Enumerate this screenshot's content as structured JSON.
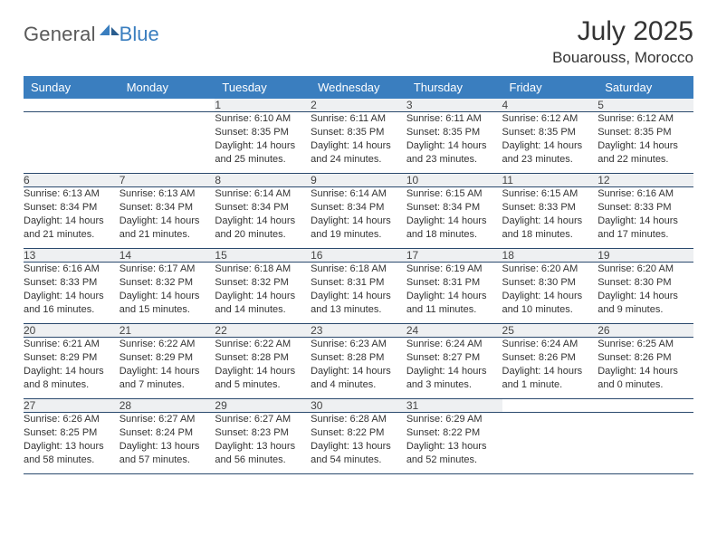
{
  "brand": {
    "general": "General",
    "blue": "Blue"
  },
  "title": {
    "month": "July 2025",
    "location": "Bouarouss, Morocco"
  },
  "colors": {
    "header_bg": "#3a7ebf",
    "header_text": "#ffffff",
    "daynum_bg": "#eef0f2",
    "border": "#2b4a6e",
    "text": "#333333",
    "logo_gray": "#5a5a5a",
    "logo_blue": "#3a7ebf"
  },
  "weekdays": [
    "Sunday",
    "Monday",
    "Tuesday",
    "Wednesday",
    "Thursday",
    "Friday",
    "Saturday"
  ],
  "weeks": [
    {
      "nums": [
        "",
        "",
        "1",
        "2",
        "3",
        "4",
        "5"
      ],
      "cells": [
        null,
        null,
        {
          "sunrise": "Sunrise: 6:10 AM",
          "sunset": "Sunset: 8:35 PM",
          "daylight": "Daylight: 14 hours and 25 minutes."
        },
        {
          "sunrise": "Sunrise: 6:11 AM",
          "sunset": "Sunset: 8:35 PM",
          "daylight": "Daylight: 14 hours and 24 minutes."
        },
        {
          "sunrise": "Sunrise: 6:11 AM",
          "sunset": "Sunset: 8:35 PM",
          "daylight": "Daylight: 14 hours and 23 minutes."
        },
        {
          "sunrise": "Sunrise: 6:12 AM",
          "sunset": "Sunset: 8:35 PM",
          "daylight": "Daylight: 14 hours and 23 minutes."
        },
        {
          "sunrise": "Sunrise: 6:12 AM",
          "sunset": "Sunset: 8:35 PM",
          "daylight": "Daylight: 14 hours and 22 minutes."
        }
      ]
    },
    {
      "nums": [
        "6",
        "7",
        "8",
        "9",
        "10",
        "11",
        "12"
      ],
      "cells": [
        {
          "sunrise": "Sunrise: 6:13 AM",
          "sunset": "Sunset: 8:34 PM",
          "daylight": "Daylight: 14 hours and 21 minutes."
        },
        {
          "sunrise": "Sunrise: 6:13 AM",
          "sunset": "Sunset: 8:34 PM",
          "daylight": "Daylight: 14 hours and 21 minutes."
        },
        {
          "sunrise": "Sunrise: 6:14 AM",
          "sunset": "Sunset: 8:34 PM",
          "daylight": "Daylight: 14 hours and 20 minutes."
        },
        {
          "sunrise": "Sunrise: 6:14 AM",
          "sunset": "Sunset: 8:34 PM",
          "daylight": "Daylight: 14 hours and 19 minutes."
        },
        {
          "sunrise": "Sunrise: 6:15 AM",
          "sunset": "Sunset: 8:34 PM",
          "daylight": "Daylight: 14 hours and 18 minutes."
        },
        {
          "sunrise": "Sunrise: 6:15 AM",
          "sunset": "Sunset: 8:33 PM",
          "daylight": "Daylight: 14 hours and 18 minutes."
        },
        {
          "sunrise": "Sunrise: 6:16 AM",
          "sunset": "Sunset: 8:33 PM",
          "daylight": "Daylight: 14 hours and 17 minutes."
        }
      ]
    },
    {
      "nums": [
        "13",
        "14",
        "15",
        "16",
        "17",
        "18",
        "19"
      ],
      "cells": [
        {
          "sunrise": "Sunrise: 6:16 AM",
          "sunset": "Sunset: 8:33 PM",
          "daylight": "Daylight: 14 hours and 16 minutes."
        },
        {
          "sunrise": "Sunrise: 6:17 AM",
          "sunset": "Sunset: 8:32 PM",
          "daylight": "Daylight: 14 hours and 15 minutes."
        },
        {
          "sunrise": "Sunrise: 6:18 AM",
          "sunset": "Sunset: 8:32 PM",
          "daylight": "Daylight: 14 hours and 14 minutes."
        },
        {
          "sunrise": "Sunrise: 6:18 AM",
          "sunset": "Sunset: 8:31 PM",
          "daylight": "Daylight: 14 hours and 13 minutes."
        },
        {
          "sunrise": "Sunrise: 6:19 AM",
          "sunset": "Sunset: 8:31 PM",
          "daylight": "Daylight: 14 hours and 11 minutes."
        },
        {
          "sunrise": "Sunrise: 6:20 AM",
          "sunset": "Sunset: 8:30 PM",
          "daylight": "Daylight: 14 hours and 10 minutes."
        },
        {
          "sunrise": "Sunrise: 6:20 AM",
          "sunset": "Sunset: 8:30 PM",
          "daylight": "Daylight: 14 hours and 9 minutes."
        }
      ]
    },
    {
      "nums": [
        "20",
        "21",
        "22",
        "23",
        "24",
        "25",
        "26"
      ],
      "cells": [
        {
          "sunrise": "Sunrise: 6:21 AM",
          "sunset": "Sunset: 8:29 PM",
          "daylight": "Daylight: 14 hours and 8 minutes."
        },
        {
          "sunrise": "Sunrise: 6:22 AM",
          "sunset": "Sunset: 8:29 PM",
          "daylight": "Daylight: 14 hours and 7 minutes."
        },
        {
          "sunrise": "Sunrise: 6:22 AM",
          "sunset": "Sunset: 8:28 PM",
          "daylight": "Daylight: 14 hours and 5 minutes."
        },
        {
          "sunrise": "Sunrise: 6:23 AM",
          "sunset": "Sunset: 8:28 PM",
          "daylight": "Daylight: 14 hours and 4 minutes."
        },
        {
          "sunrise": "Sunrise: 6:24 AM",
          "sunset": "Sunset: 8:27 PM",
          "daylight": "Daylight: 14 hours and 3 minutes."
        },
        {
          "sunrise": "Sunrise: 6:24 AM",
          "sunset": "Sunset: 8:26 PM",
          "daylight": "Daylight: 14 hours and 1 minute."
        },
        {
          "sunrise": "Sunrise: 6:25 AM",
          "sunset": "Sunset: 8:26 PM",
          "daylight": "Daylight: 14 hours and 0 minutes."
        }
      ]
    },
    {
      "nums": [
        "27",
        "28",
        "29",
        "30",
        "31",
        "",
        ""
      ],
      "cells": [
        {
          "sunrise": "Sunrise: 6:26 AM",
          "sunset": "Sunset: 8:25 PM",
          "daylight": "Daylight: 13 hours and 58 minutes."
        },
        {
          "sunrise": "Sunrise: 6:27 AM",
          "sunset": "Sunset: 8:24 PM",
          "daylight": "Daylight: 13 hours and 57 minutes."
        },
        {
          "sunrise": "Sunrise: 6:27 AM",
          "sunset": "Sunset: 8:23 PM",
          "daylight": "Daylight: 13 hours and 56 minutes."
        },
        {
          "sunrise": "Sunrise: 6:28 AM",
          "sunset": "Sunset: 8:22 PM",
          "daylight": "Daylight: 13 hours and 54 minutes."
        },
        {
          "sunrise": "Sunrise: 6:29 AM",
          "sunset": "Sunset: 8:22 PM",
          "daylight": "Daylight: 13 hours and 52 minutes."
        },
        null,
        null
      ]
    }
  ]
}
